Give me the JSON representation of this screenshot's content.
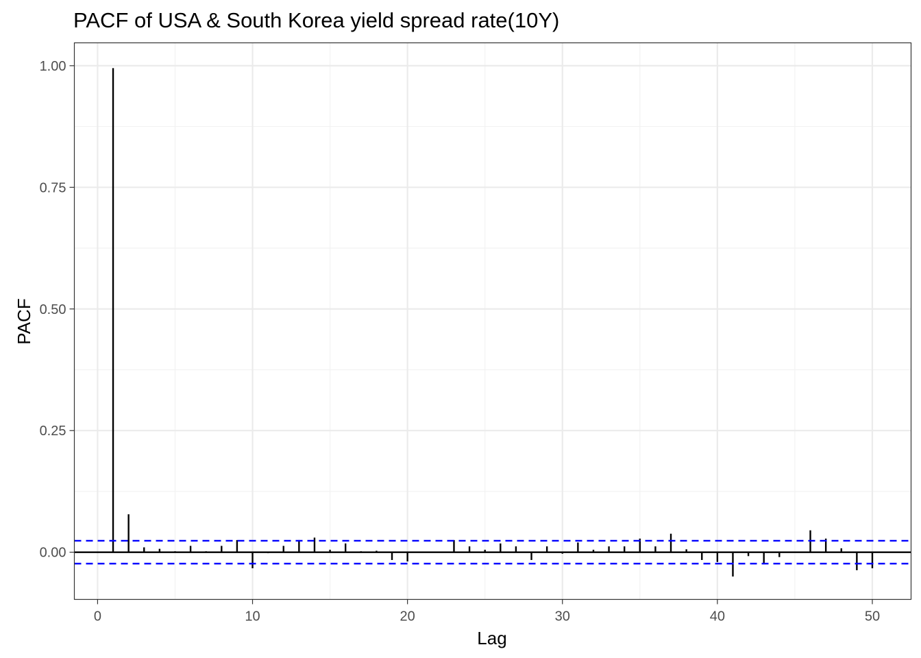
{
  "chart_data": {
    "type": "bar",
    "subtype": "pacf-lollipop",
    "title": "PACF of USA & South Korea yield spread rate(10Y)",
    "xlabel": "Lag",
    "ylabel": "PACF",
    "xlim": [
      -1.5,
      52.5
    ],
    "ylim": [
      -0.097,
      1.047
    ],
    "x_ticks": [
      0,
      10,
      20,
      30,
      40,
      50
    ],
    "x_tick_labels": [
      "0",
      "10",
      "20",
      "30",
      "40",
      "50"
    ],
    "y_ticks": [
      0.0,
      0.25,
      0.5,
      0.75,
      1.0
    ],
    "y_tick_labels": [
      "0.00",
      "0.25",
      "0.50",
      "0.75",
      "1.00"
    ],
    "confidence_bound": 0.0235,
    "grid": true,
    "colors": {
      "bars": "#000000",
      "zero_line": "#000000",
      "ci_lines": "#0000ff",
      "grid_major": "#ebebeb",
      "grid_minor": "#f2f2f2",
      "panel_border": "#333333"
    },
    "series": [
      {
        "lags": [
          1,
          2,
          3,
          4,
          5,
          6,
          7,
          8,
          9,
          10,
          11,
          12,
          13,
          14,
          15,
          16,
          17,
          18,
          19,
          20,
          21,
          22,
          23,
          24,
          25,
          26,
          27,
          28,
          29,
          30,
          31,
          32,
          33,
          34,
          35,
          36,
          37,
          38,
          39,
          40,
          41,
          42,
          43,
          44,
          45,
          46,
          47,
          48,
          49,
          50
        ],
        "values": [
          0.995,
          0.078,
          0.01,
          0.007,
          0.002,
          0.013,
          0.002,
          0.013,
          0.025,
          -0.033,
          -0.002,
          0.013,
          0.025,
          0.03,
          0.005,
          0.018,
          0.002,
          0.003,
          -0.016,
          -0.019,
          0.001,
          0.001,
          0.025,
          0.012,
          0.005,
          0.018,
          0.012,
          -0.016,
          0.012,
          -0.003,
          0.02,
          0.005,
          0.012,
          0.012,
          0.028,
          0.012,
          0.038,
          0.006,
          -0.016,
          -0.02,
          -0.05,
          -0.008,
          -0.025,
          -0.01,
          0.001,
          0.045,
          0.028,
          0.008,
          -0.037,
          -0.033
        ]
      }
    ]
  }
}
